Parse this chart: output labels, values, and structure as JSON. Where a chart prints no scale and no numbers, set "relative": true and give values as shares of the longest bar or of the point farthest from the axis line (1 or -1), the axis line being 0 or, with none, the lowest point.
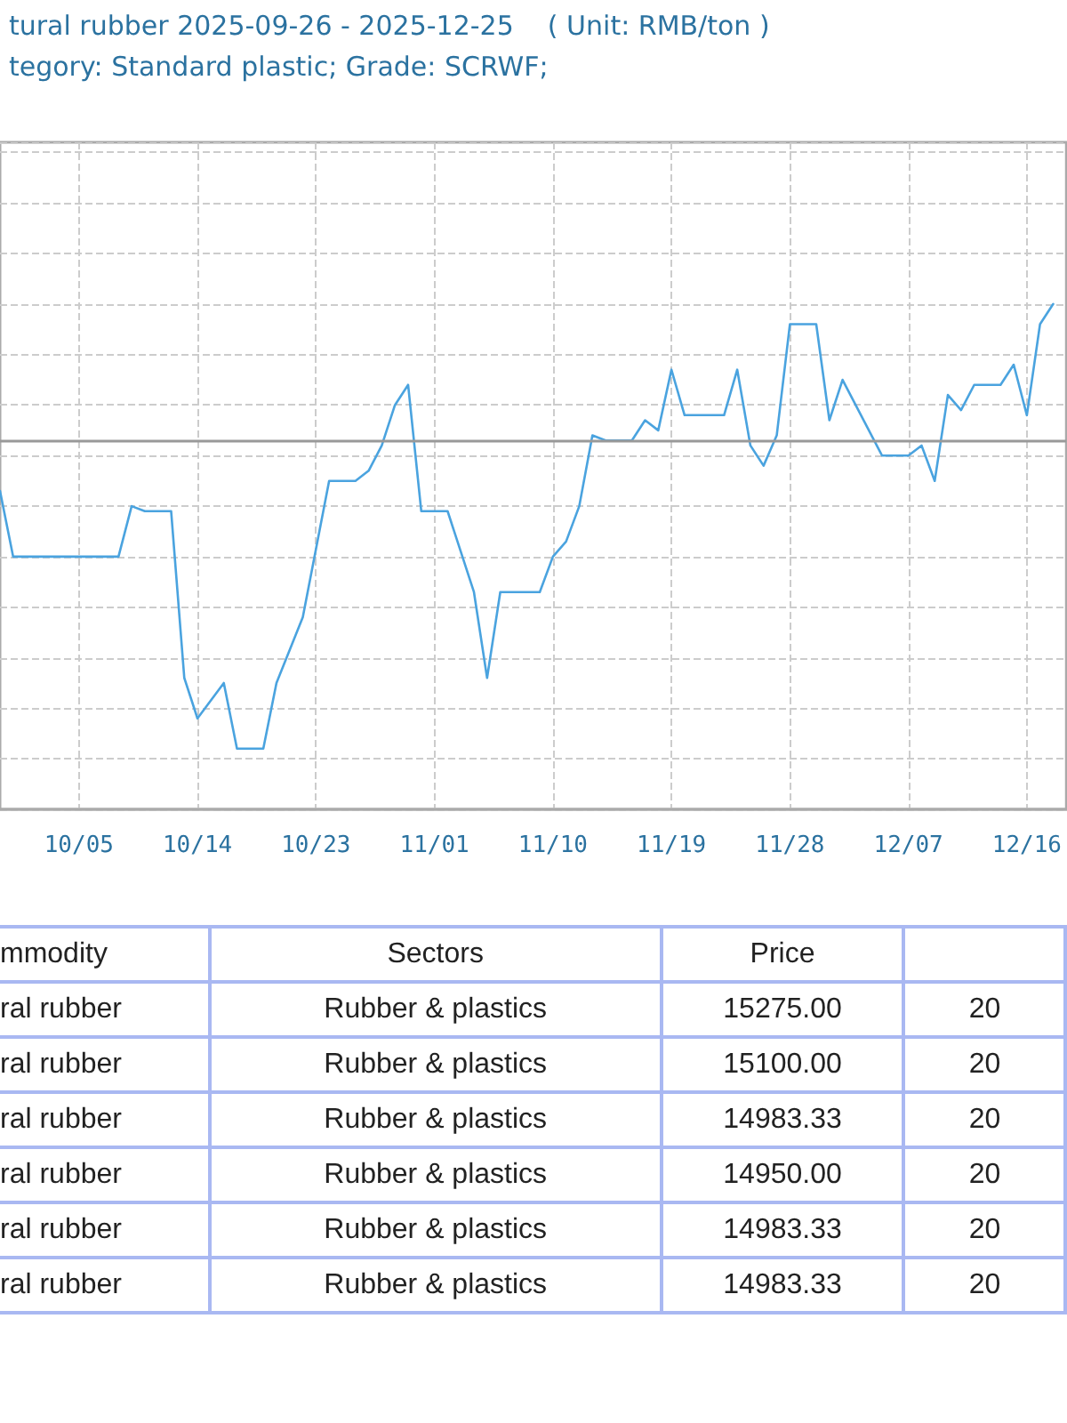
{
  "chart_data": [
    {
      "type": "line",
      "title": "tural rubber 2025-09-26 - 2025-12-25    ( Unit: RMB/ton )",
      "subtitle": "tegory: Standard plastic; Grade: SCRWF;",
      "relative": true,
      "grid": true,
      "marker": "none",
      "line_style": "solid",
      "x": [
        "2025-09-29",
        "2025-09-30",
        "2025-10-08",
        "2025-10-09",
        "2025-10-10",
        "2025-10-12",
        "2025-10-13",
        "2025-10-14",
        "2025-10-16",
        "2025-10-17",
        "2025-10-19",
        "2025-10-20",
        "2025-10-22",
        "2025-10-24",
        "2025-10-26",
        "2025-10-27",
        "2025-10-28",
        "2025-10-29",
        "2025-10-30",
        "2025-10-31",
        "2025-11-02",
        "2025-11-04",
        "2025-11-05",
        "2025-11-06",
        "2025-11-08",
        "2025-11-09",
        "2025-11-10",
        "2025-11-11",
        "2025-11-12",
        "2025-11-13",
        "2025-11-14",
        "2025-11-16",
        "2025-11-17",
        "2025-11-18",
        "2025-11-19",
        "2025-11-20",
        "2025-11-23",
        "2025-11-24",
        "2025-11-25",
        "2025-11-26",
        "2025-11-27",
        "2025-11-28",
        "2025-11-30",
        "2025-12-01",
        "2025-12-02",
        "2025-12-05",
        "2025-12-07",
        "2025-12-08",
        "2025-12-09",
        "2025-12-10",
        "2025-12-11",
        "2025-12-12",
        "2025-12-14",
        "2025-12-15",
        "2025-12-16",
        "2025-12-17",
        "2025-12-18"
      ],
      "series": [
        {
          "color": "#4aa3df",
          "values": [
            0.63,
            0.5,
            0.5,
            0.6,
            0.59,
            0.59,
            0.26,
            0.18,
            0.25,
            0.12,
            0.12,
            0.25,
            0.38,
            0.65,
            0.65,
            0.67,
            0.72,
            0.8,
            0.84,
            0.59,
            0.59,
            0.43,
            0.26,
            0.43,
            0.43,
            0.43,
            0.5,
            0.53,
            0.6,
            0.74,
            0.73,
            0.73,
            0.77,
            0.75,
            0.87,
            0.78,
            0.78,
            0.87,
            0.72,
            0.68,
            0.74,
            0.96,
            0.96,
            0.77,
            0.85,
            0.7,
            0.7,
            0.72,
            0.65,
            0.82,
            0.79,
            0.84,
            0.84,
            0.88,
            0.78,
            0.96,
            1
          ]
        }
      ],
      "xlim": [
        "2025-09-29",
        "2025-12-19"
      ],
      "xticks": [
        {
          "value": "2025-10-05",
          "label": "10/05"
        },
        {
          "value": "2025-10-14",
          "label": "10/14"
        },
        {
          "value": "2025-10-23",
          "label": "10/23"
        },
        {
          "value": "2025-11-01",
          "label": "11/01"
        },
        {
          "value": "2025-11-10",
          "label": "11/10"
        },
        {
          "value": "2025-11-19",
          "label": "11/19"
        },
        {
          "value": "2025-11-28",
          "label": "11/28"
        },
        {
          "value": "2025-12-07",
          "label": "12/07"
        },
        {
          "value": "2025-12-16",
          "label": "12/16"
        }
      ],
      "ref_lines": [
        {
          "axis": "y",
          "value": 0.73,
          "color": "#999999"
        }
      ]
    },
    {
      "type": "other",
      "categories": [
        "mmodity",
        "Sectors",
        "Price",
        null
      ],
      "annotations": [
        "ral rubber",
        "Rubber & plastics",
        "15275.00",
        "20",
        "ral rubber",
        "Rubber & plastics",
        "15100.00",
        "20",
        "ral rubber",
        "Rubber & plastics",
        "14983.33",
        "20",
        "ral rubber",
        "Rubber & plastics",
        "14950.00",
        "20",
        "ral rubber",
        "Rubber & plastics",
        "14983.33",
        "20",
        "ral rubber",
        "Rubber & plastics",
        "14983.33",
        "20"
      ]
    }
  ]
}
